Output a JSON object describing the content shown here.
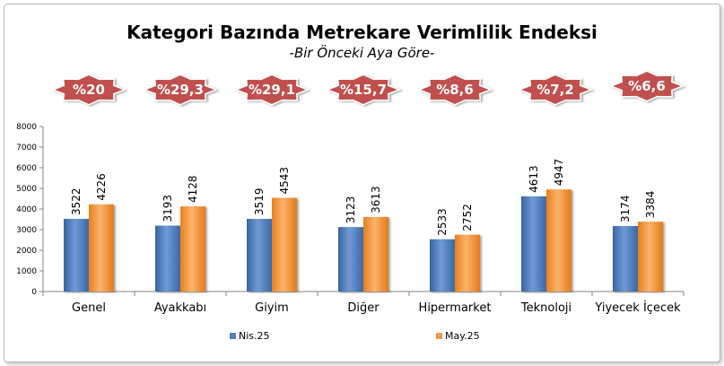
{
  "chart_data": {
    "type": "bar",
    "title": "Kategori Bazında Metrekare Verimlilik Endeksi",
    "subtitle": "-Bir Önceki Aya Göre-",
    "categories": [
      "Genel",
      "Ayakkabı",
      "Giyim",
      "Diğer",
      "Hipermarket",
      "Teknoloji",
      "Yiyecek İçecek"
    ],
    "series": [
      {
        "name": "Nis.25",
        "values": [
          3522,
          3193,
          3519,
          3123,
          2533,
          4613,
          3174
        ],
        "color": "#4f81bd"
      },
      {
        "name": "May.25",
        "values": [
          4226,
          4128,
          4543,
          3613,
          2752,
          4947,
          3384
        ],
        "color": "#f79646"
      }
    ],
    "change_labels": [
      "%20",
      "%29,3",
      "%29,1",
      "%15,7",
      "%8,6",
      "%7,2",
      "%6,6"
    ],
    "badge_color": "#c0504d",
    "ylim": [
      0,
      8000
    ],
    "yticks": [
      0,
      1000,
      2000,
      3000,
      4000,
      5000,
      6000,
      7000,
      8000
    ],
    "grid": false,
    "legend_position": "bottom"
  }
}
